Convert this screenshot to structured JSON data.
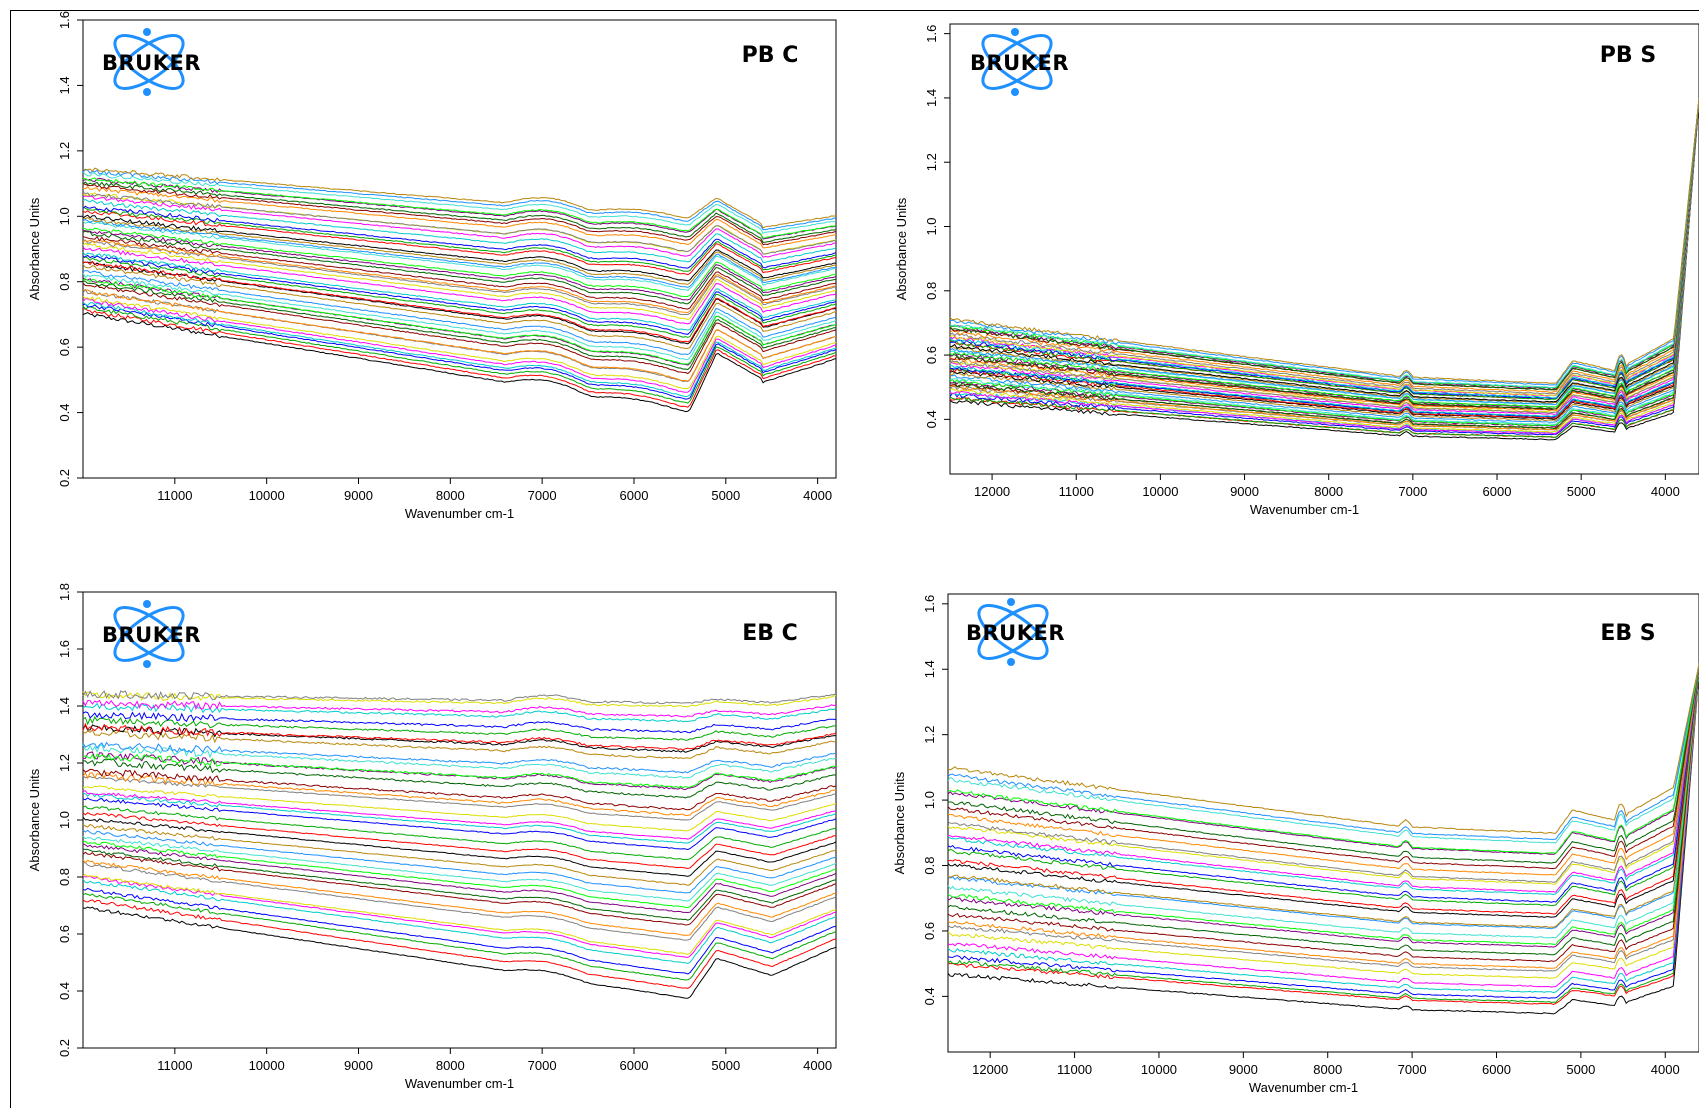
{
  "chart_data": [
    {
      "type": "line",
      "title": "PB C",
      "logo": "BRUKER",
      "xlabel": "Wavenumber cm-1",
      "ylabel": "Absorbance Units",
      "x_reversed": true,
      "xlim": [
        12000,
        3800
      ],
      "ylim": [
        0.2,
        1.6
      ],
      "xticks": [
        11000,
        10000,
        9000,
        8000,
        7000,
        6000,
        5000,
        4000
      ],
      "yticks": [
        0.2,
        0.4,
        0.6,
        0.8,
        1.0,
        1.2,
        1.4,
        1.6
      ],
      "ytick_labels": [
        "0.2",
        "0.4",
        "0.6",
        "0.8",
        "1.0",
        "1.2",
        "1.4",
        "1.6"
      ],
      "series_count": 48,
      "start_range": [
        0.7,
        1.15
      ],
      "profile": "pb"
    },
    {
      "type": "line",
      "title": "PB S",
      "logo": "BRUKER",
      "xlabel": "Wavenumber cm-1",
      "ylabel": "Absorbance Units",
      "x_reversed": true,
      "xlim": [
        12500,
        3600
      ],
      "ylim": [
        0.23,
        1.63
      ],
      "xticks": [
        12000,
        11000,
        10000,
        9000,
        8000,
        7000,
        6000,
        5000,
        4000
      ],
      "yticks": [
        0.4,
        0.6,
        0.8,
        1.0,
        1.2,
        1.4,
        1.6
      ],
      "ytick_labels": [
        "0.4",
        "0.6",
        "0.8",
        "1.0",
        "1.2",
        "1.4",
        "1.6"
      ],
      "series_count": 48,
      "start_range": [
        0.46,
        0.71
      ],
      "profile": "s"
    },
    {
      "type": "line",
      "title": "EB C",
      "logo": "BRUKER",
      "xlabel": "Wavenumber cm-1",
      "ylabel": "Absorbance Units",
      "x_reversed": true,
      "xlim": [
        12000,
        3800
      ],
      "ylim": [
        0.2,
        1.8
      ],
      "xticks": [
        11000,
        10000,
        9000,
        8000,
        7000,
        6000,
        5000,
        4000
      ],
      "yticks": [
        0.2,
        0.4,
        0.6,
        0.8,
        1.0,
        1.2,
        1.4,
        1.6,
        1.8
      ],
      "ytick_labels": [
        "0.2",
        "0.4",
        "0.6",
        "0.8",
        "1.0",
        "1.2",
        "1.4",
        "1.6",
        "1.8"
      ],
      "series_count": 40,
      "start_range": [
        0.7,
        1.45
      ],
      "profile": "eb"
    },
    {
      "type": "line",
      "title": "EB S",
      "logo": "BRUKER",
      "xlabel": "Wavenumber cm-1",
      "ylabel": "Absorbance Units",
      "x_reversed": true,
      "xlim": [
        12500,
        3600
      ],
      "ylim": [
        0.23,
        1.63
      ],
      "xticks": [
        12000,
        11000,
        10000,
        9000,
        8000,
        7000,
        6000,
        5000,
        4000
      ],
      "yticks": [
        0.4,
        0.6,
        0.8,
        1.0,
        1.2,
        1.4,
        1.6
      ],
      "ytick_labels": [
        "0.4",
        "0.6",
        "0.8",
        "1.0",
        "1.2",
        "1.4",
        "1.6"
      ],
      "series_count": 32,
      "start_range": [
        0.47,
        1.1
      ],
      "profile": "s"
    }
  ],
  "colors": [
    "#000000",
    "#ff0000",
    "#00aa00",
    "#0000ff",
    "#00cccc",
    "#ff00ff",
    "#dddd00",
    "#808080",
    "#ff8800",
    "#8b0000",
    "#006400",
    "#800080",
    "#00ff00",
    "#40e0d0",
    "#1e90ff",
    "#b8860b"
  ]
}
